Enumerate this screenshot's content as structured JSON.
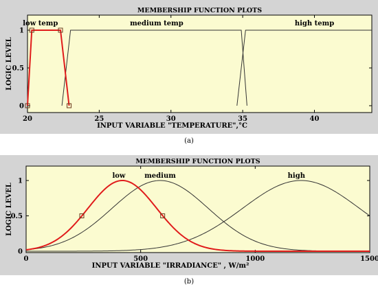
{
  "chart_data": [
    {
      "type": "line",
      "panel": "(a)",
      "title": "MEMBERSHIP FUNCTION PLOTS",
      "xlabel": "INPUT VARIABLE \"TEMPERATURE\",°C",
      "ylabel": "LOGIC LEVEL",
      "xlim": [
        20,
        44
      ],
      "ylim": [
        0,
        1
      ],
      "xticks": [
        20,
        25,
        30,
        35,
        40
      ],
      "yticks": [
        0,
        0.5,
        1
      ],
      "ytick_labels": [
        "0",
        "0.5",
        "1"
      ],
      "grid": false,
      "highlight_color": "#e01b1b",
      "line_color": "#333333",
      "background_color": "#fbfbd0",
      "series": [
        {
          "name": "low temp",
          "shape": "trapezoid",
          "x": [
            20,
            20.3,
            22.3,
            22.9
          ],
          "y": [
            0,
            1,
            1,
            0
          ],
          "highlighted": true,
          "label_x": 20.9,
          "label_y": 1.09
        },
        {
          "name": "medium temp",
          "shape": "trapezoid",
          "x": [
            22.4,
            23.0,
            34.9,
            35.3
          ],
          "y": [
            0,
            1,
            1,
            0
          ],
          "highlighted": false,
          "label_x": 29.0,
          "label_y": 1.09
        },
        {
          "name": "high temp",
          "shape": "trapezoid",
          "x": [
            34.6,
            35.2,
            44,
            44
          ],
          "y": [
            0,
            1,
            1,
            1
          ],
          "highlighted": false,
          "label_x": 40.0,
          "label_y": 1.09
        }
      ],
      "markers": [
        {
          "x": 20.3,
          "y": 1
        },
        {
          "x": 22.3,
          "y": 1
        },
        {
          "x": 20,
          "y": 0
        },
        {
          "x": 22.9,
          "y": 0
        }
      ]
    },
    {
      "type": "line",
      "panel": "(b)",
      "title": "MEMBERSHIP FUNCTION PLOTS",
      "xlabel": "INPUT VARIABLE \"IRRADIANCE\" , W/m²",
      "ylabel": "LOGIC LEVEL",
      "xlim": [
        0,
        1500
      ],
      "ylim": [
        0,
        1
      ],
      "xticks": [
        0,
        500,
        1000,
        1500
      ],
      "yticks": [
        0,
        0.5,
        1
      ],
      "ytick_labels": [
        "0",
        "0.5",
        "1"
      ],
      "grid": false,
      "highlight_color": "#e01b1b",
      "line_color": "#333333",
      "background_color": "#fbfbd0",
      "series": [
        {
          "name": "low",
          "shape": "gaussian",
          "center": 420,
          "sigma": 150,
          "highlighted": true,
          "label_x": 405,
          "label_y": 1.07
        },
        {
          "name": "medium",
          "shape": "gaussian",
          "center": 585,
          "sigma": 210,
          "highlighted": false,
          "label_x": 585,
          "label_y": 1.07
        },
        {
          "name": "high",
          "shape": "gaussian",
          "center": 1200,
          "sigma": 255,
          "highlighted": false,
          "label_x": 1180,
          "label_y": 1.07
        }
      ],
      "markers": [
        {
          "x": 243,
          "y": 0.5
        },
        {
          "x": 596,
          "y": 0.5
        }
      ]
    }
  ],
  "captions": [
    "(a)",
    "(b)"
  ]
}
